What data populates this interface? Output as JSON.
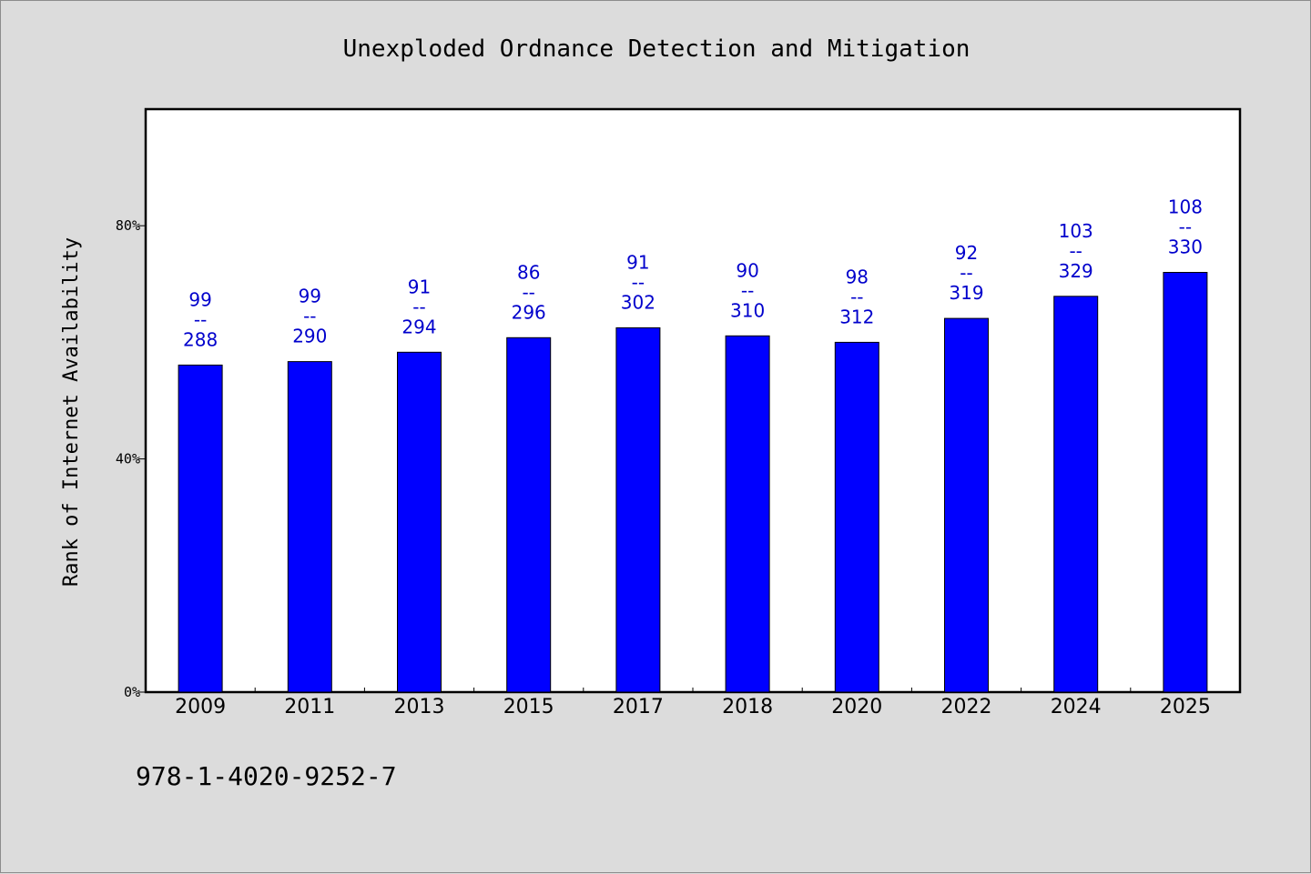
{
  "chart_data": {
    "type": "bar",
    "title": "Unexploded Ordnance Detection and Mitigation",
    "xlabel": "",
    "ylabel": "Rank of Internet Availability",
    "ylim": [
      0,
      100
    ],
    "y_ticks": [
      {
        "value": 0,
        "label": "0%"
      },
      {
        "value": 40,
        "label": "40%"
      },
      {
        "value": 80,
        "label": "80%"
      }
    ],
    "categories": [
      "2009",
      "2011",
      "2013",
      "2015",
      "2017",
      "2018",
      "2020",
      "2022",
      "2024",
      "2025"
    ],
    "values": [
      56.1,
      56.7,
      58.3,
      60.8,
      62.5,
      61.1,
      60.0,
      64.1,
      67.9,
      72.0
    ],
    "labels": [
      {
        "top": "99",
        "sep": "--",
        "bottom": "288"
      },
      {
        "top": "99",
        "sep": "--",
        "bottom": "290"
      },
      {
        "top": "91",
        "sep": "--",
        "bottom": "294"
      },
      {
        "top": "86",
        "sep": "--",
        "bottom": "296"
      },
      {
        "top": "91",
        "sep": "--",
        "bottom": "302"
      },
      {
        "top": "90",
        "sep": "--",
        "bottom": "310"
      },
      {
        "top": "98",
        "sep": "--",
        "bottom": "312"
      },
      {
        "top": "92",
        "sep": "--",
        "bottom": "319"
      },
      {
        "top": "103",
        "sep": "--",
        "bottom": "329"
      },
      {
        "top": "108",
        "sep": "--",
        "bottom": "330"
      }
    ],
    "grid": false,
    "bar_color": "#0000ff",
    "label_color": "#0000cc",
    "footnote": "978-1-4020-9252-7"
  }
}
